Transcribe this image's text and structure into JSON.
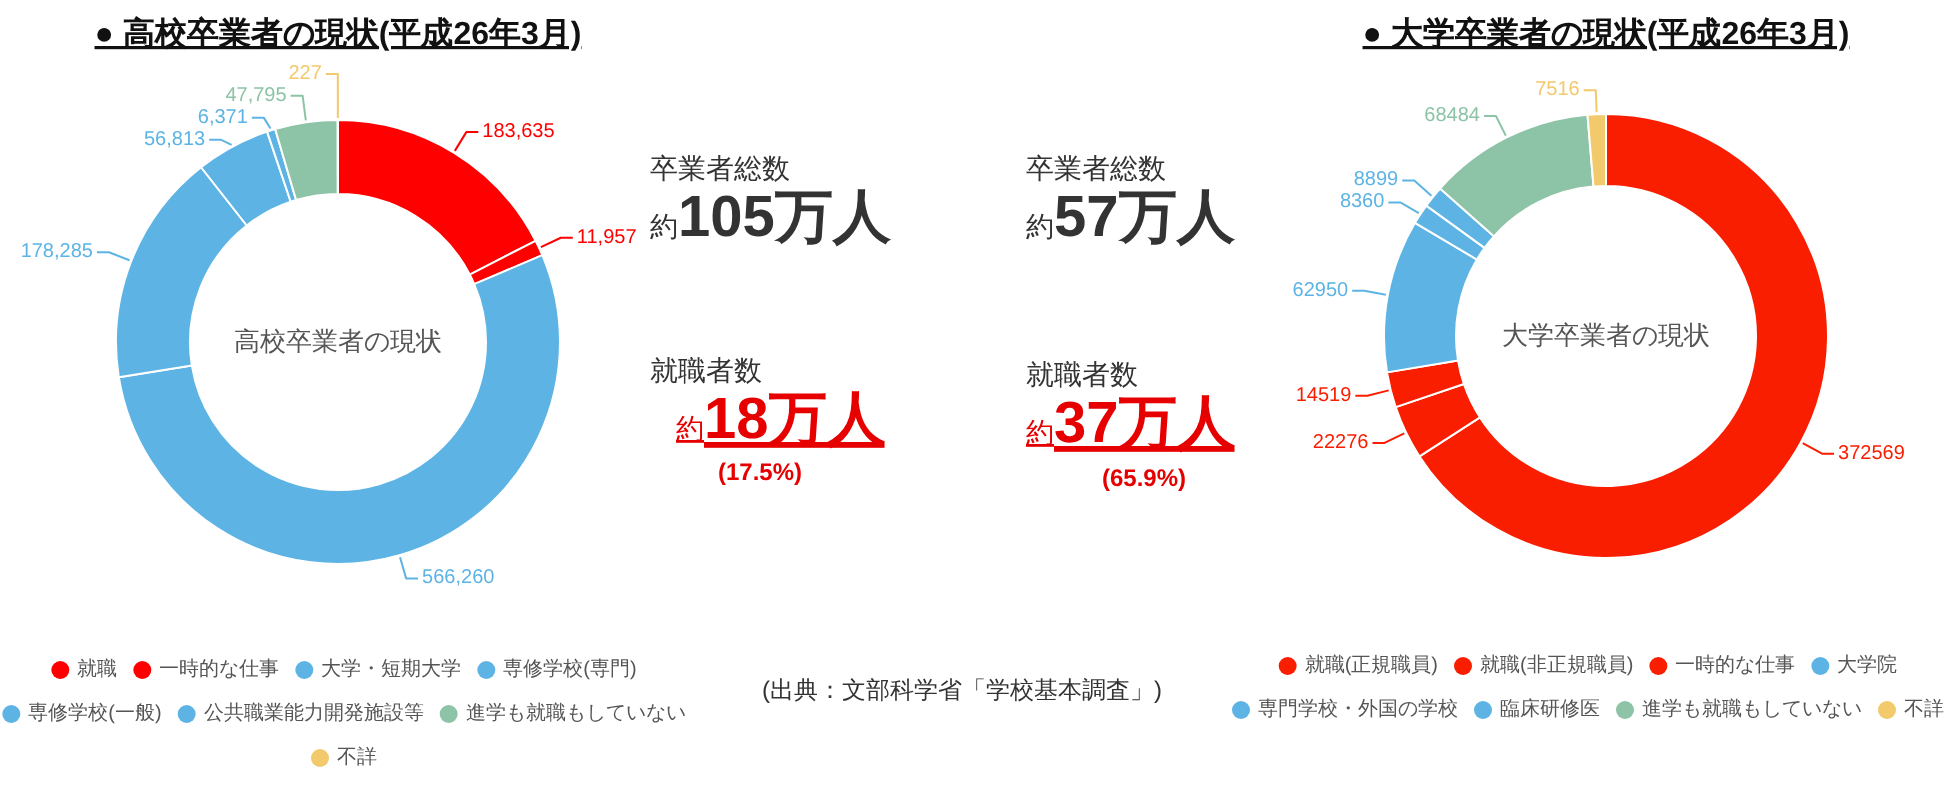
{
  "chart_data": [
    {
      "type": "donut",
      "title": "● 高校卒業者の現状(平成26年3月)",
      "categories": [
        "就職",
        "一時的な仕事",
        "大学・短期大学",
        "専修学校(専門)",
        "専修学校(一般)",
        "公共職業能力開発施設等",
        "進学も就職もしていない",
        "不詳"
      ],
      "values": [
        183635,
        11957,
        566260,
        178285,
        56813,
        6371,
        47795,
        227
      ],
      "value_labels": [
        "183,635",
        "11,957",
        "566,260",
        "178,285",
        "56,813",
        "6,371",
        "47,795",
        "227"
      ],
      "colors": [
        "#ff0000",
        "#ff0000",
        "#5db4e4",
        "#5db4e4",
        "#5db4e4",
        "#5db4e4",
        "#8dc3a7",
        "#f2c96b"
      ],
      "legend": "bottom",
      "annotations": [
        "高校卒業者の現状"
      ]
    },
    {
      "type": "other",
      "annotations": [
        "卒業者総数",
        "約105万人",
        "就職者数",
        "約18万人",
        "(17.5%)",
        "卒業者総数",
        "約57万人",
        "就職者数",
        "約37万人",
        "(65.9%)",
        "(出典：文部科学省「学校基本調査」)"
      ]
    },
    {
      "type": "donut",
      "title": "● 大学卒業者の現状(平成26年3月)",
      "categories": [
        "就職(正規職員)",
        "就職(非正規職員)",
        "一時的な仕事",
        "大学院",
        "専門学校・外国の学校",
        "臨床研修医",
        "進学も就職もしていない",
        "不詳"
      ],
      "values": [
        372569,
        22276,
        14519,
        62950,
        8360,
        8899,
        68484,
        7516
      ],
      "data_labels": true,
      "colors": [
        "#fa1e00",
        "#fa1e00",
        "#fa1e00",
        "#5db4e4",
        "#5db4e4",
        "#5db4e4",
        "#8dc3a7",
        "#f2c96b"
      ],
      "legend": "bottom",
      "annotations": [
        "大学卒業者の現状"
      ]
    }
  ]
}
